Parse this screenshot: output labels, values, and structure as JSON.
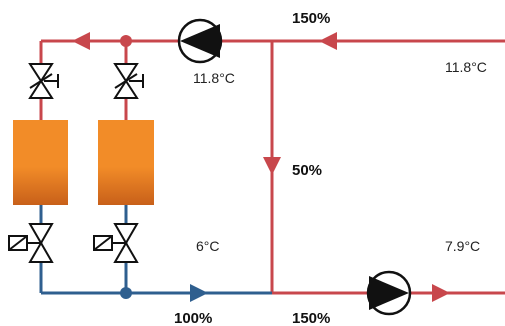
{
  "colors": {
    "hot_pipe": "#c8474c",
    "cold_pipe": "#2f5f8f",
    "mixed_pipe": "#c8474c",
    "flow_arrow_hot": "#c8474c",
    "flow_arrow_cold": "#2f5f8f",
    "radiator_top": "#f28c28",
    "radiator_bottom": "#c8601a",
    "valve_stroke": "#111111",
    "pump_stroke": "#111111"
  },
  "labels": {
    "supply_flow_pct": "150%",
    "supply_temp_right": "11.8°C",
    "pump_temp": "11.8°C",
    "bypass_flow_pct": "50%",
    "return_temp_left": "6°C",
    "return_temp_right": "7.9°C",
    "return_flow_left_pct": "100%",
    "return_flow_right_pct": "150%"
  },
  "icons": {
    "pump": "circulation-pump-icon",
    "balancing_valve": "balancing-valve-icon",
    "solenoid_valve": "solenoid-valve-icon",
    "radiator": "heat-emitter-icon",
    "flow_direction": "flow-arrow-icon"
  }
}
